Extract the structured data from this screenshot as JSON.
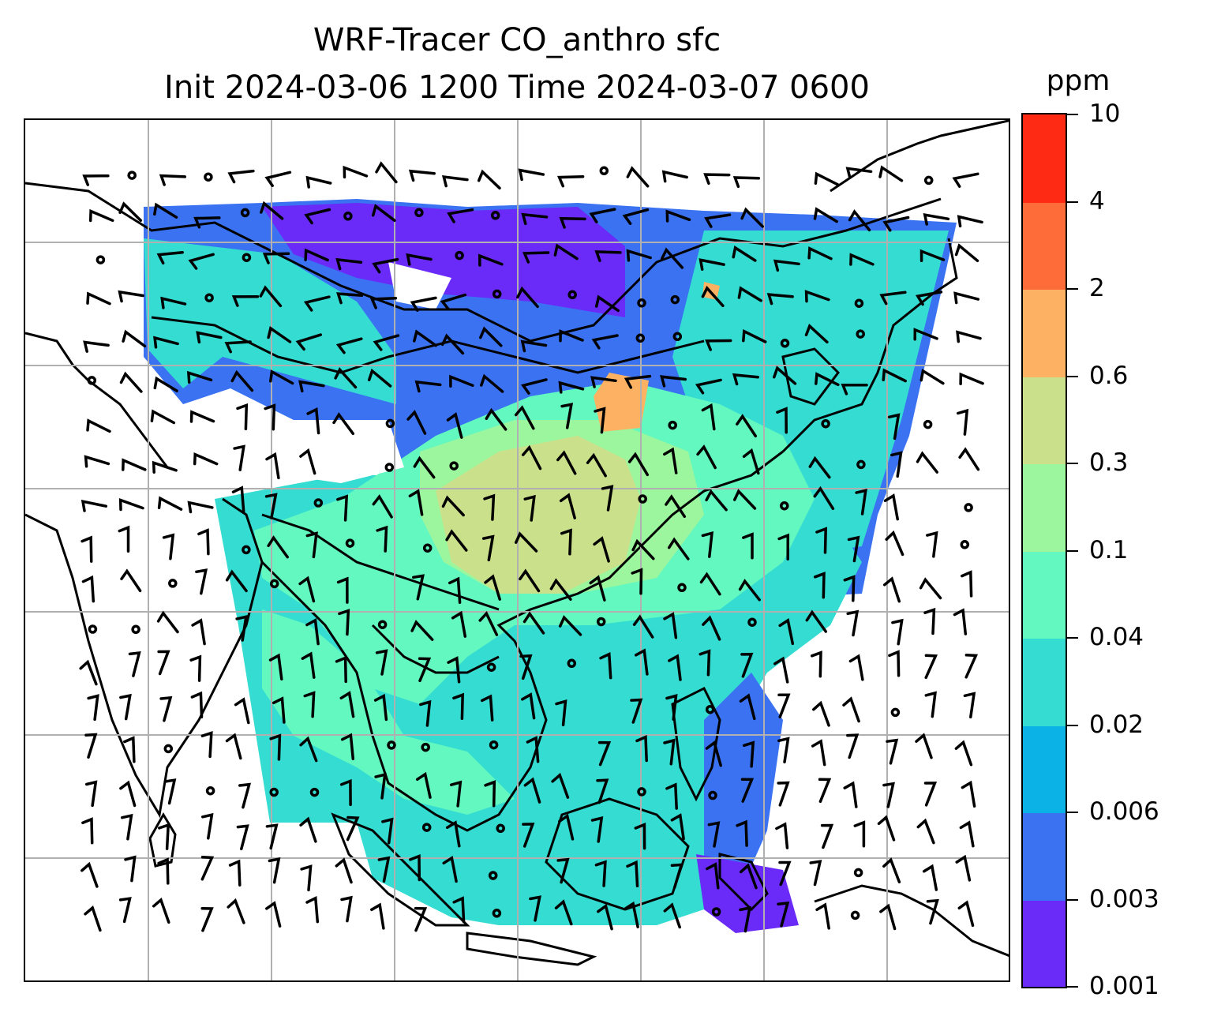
{
  "title": {
    "line1": "WRF-Tracer CO_anthro sfc",
    "line2": "Init 2024-03-06 1200 Time 2024-03-07 0600"
  },
  "colorbar": {
    "unit": "ppm",
    "tick_labels": [
      "0.001",
      "0.003",
      "0.006",
      "0.02",
      "0.04",
      "0.1",
      "0.3",
      "0.6",
      "2",
      "4",
      "10"
    ],
    "colors": [
      "#6a2af8",
      "#3a72f2",
      "#0bb2e6",
      "#34dcd2",
      "#62f8c0",
      "#9cf69e",
      "#cbe08a",
      "#fcb262",
      "#fe6c3a",
      "#fe2a14"
    ]
  },
  "map": {
    "gridlines": true,
    "gridline_color": "#b0b0b0",
    "coastline_color": "#000000",
    "wind_barb_color": "#000000"
  }
}
